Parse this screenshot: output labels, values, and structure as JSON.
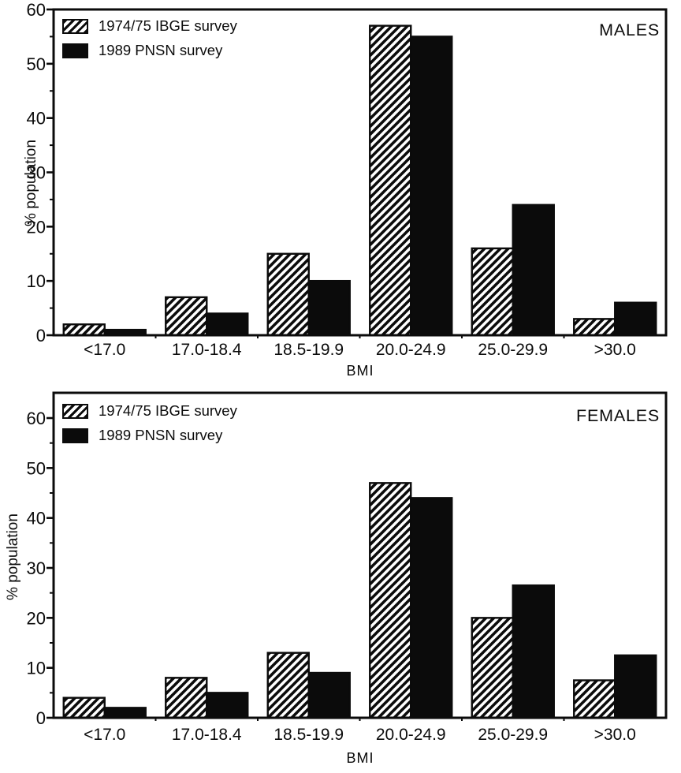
{
  "colors": {
    "ink": "#0b0b0b",
    "background": "#ffffff",
    "bar_solid": "#0b0b0b",
    "bar_hatched_fill": "#ffffff"
  },
  "chart_data": [
    {
      "type": "bar",
      "title": "MALES",
      "xlabel": "BMI",
      "ylabel": "% population",
      "categories": [
        "<17.0",
        "17.0-18.4",
        "18.5-19.9",
        "20.0-24.9",
        "25.0-29.9",
        ">30.0"
      ],
      "series": [
        {
          "name": "1974/75 IBGE survey",
          "style": "hatched",
          "values": [
            2,
            7,
            15,
            57,
            16,
            3
          ]
        },
        {
          "name": "1989 PNSN survey",
          "style": "solid",
          "values": [
            1,
            4,
            10,
            55,
            24,
            6
          ]
        }
      ],
      "ylim": [
        0,
        60
      ],
      "yticks": [
        0,
        10,
        20,
        30,
        40,
        50,
        60
      ],
      "y_minor_tick_step": 5,
      "grid": false,
      "legend_position": "top-left",
      "title_position": "top-right"
    },
    {
      "type": "bar",
      "title": "FEMALES",
      "xlabel": "BMI",
      "ylabel": "% population",
      "categories": [
        "<17.0",
        "17.0-18.4",
        "18.5-19.9",
        "20.0-24.9",
        "25.0-29.9",
        ">30.0"
      ],
      "series": [
        {
          "name": "1974/75 IBGE survey",
          "style": "hatched",
          "values": [
            4,
            8,
            13,
            47,
            20,
            7.5
          ]
        },
        {
          "name": "1989 PNSN survey",
          "style": "solid",
          "values": [
            2,
            5,
            9,
            44,
            26.5,
            12.5
          ]
        }
      ],
      "ylim": [
        0,
        65
      ],
      "yticks": [
        0,
        10,
        20,
        30,
        40,
        50,
        60
      ],
      "y_minor_tick_step": 5,
      "grid": false,
      "legend_position": "top-left",
      "title_position": "top-right"
    }
  ]
}
